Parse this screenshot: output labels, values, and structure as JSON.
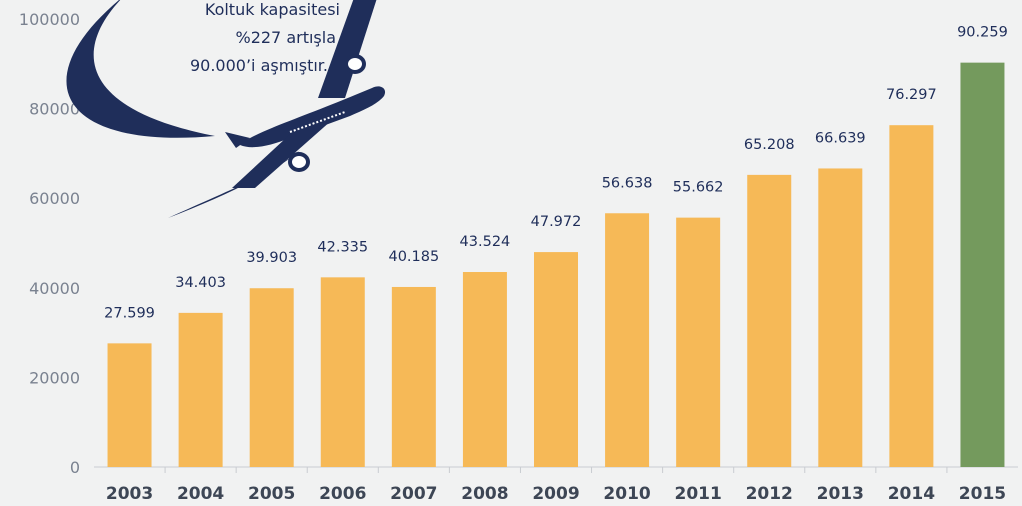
{
  "chart_data": {
    "type": "bar",
    "categories": [
      "2003",
      "2004",
      "2005",
      "2006",
      "2007",
      "2008",
      "2009",
      "2010",
      "2011",
      "2012",
      "2013",
      "2014",
      "2015"
    ],
    "values": [
      27599,
      34403,
      39903,
      42335,
      40185,
      43524,
      47972,
      56638,
      55662,
      65208,
      66639,
      76297,
      90259
    ],
    "data_labels": [
      "27.599",
      "34.403",
      "39.903",
      "42.335",
      "40.185",
      "43.524",
      "47.972",
      "56.638",
      "55.662",
      "65.208",
      "66.639",
      "76.297",
      "90.259"
    ],
    "yticks": [
      "0",
      "20000",
      "40000",
      "60000",
      "80000",
      "100000"
    ],
    "ylim": [
      0,
      100000
    ],
    "title": "",
    "xlabel": "",
    "ylabel": "",
    "grid": false,
    "colors": {
      "bar": "#f6b957",
      "highlight": "#749a5d",
      "label": "#1f2e5a",
      "airplane": "#1f2e5a"
    },
    "highlight_category": "2015",
    "annotation": [
      "Koltuk kapasitesi",
      "%227 artışla",
      "90.000’i aşmıştır."
    ],
    "annotation_icon": "airplane-icon"
  }
}
